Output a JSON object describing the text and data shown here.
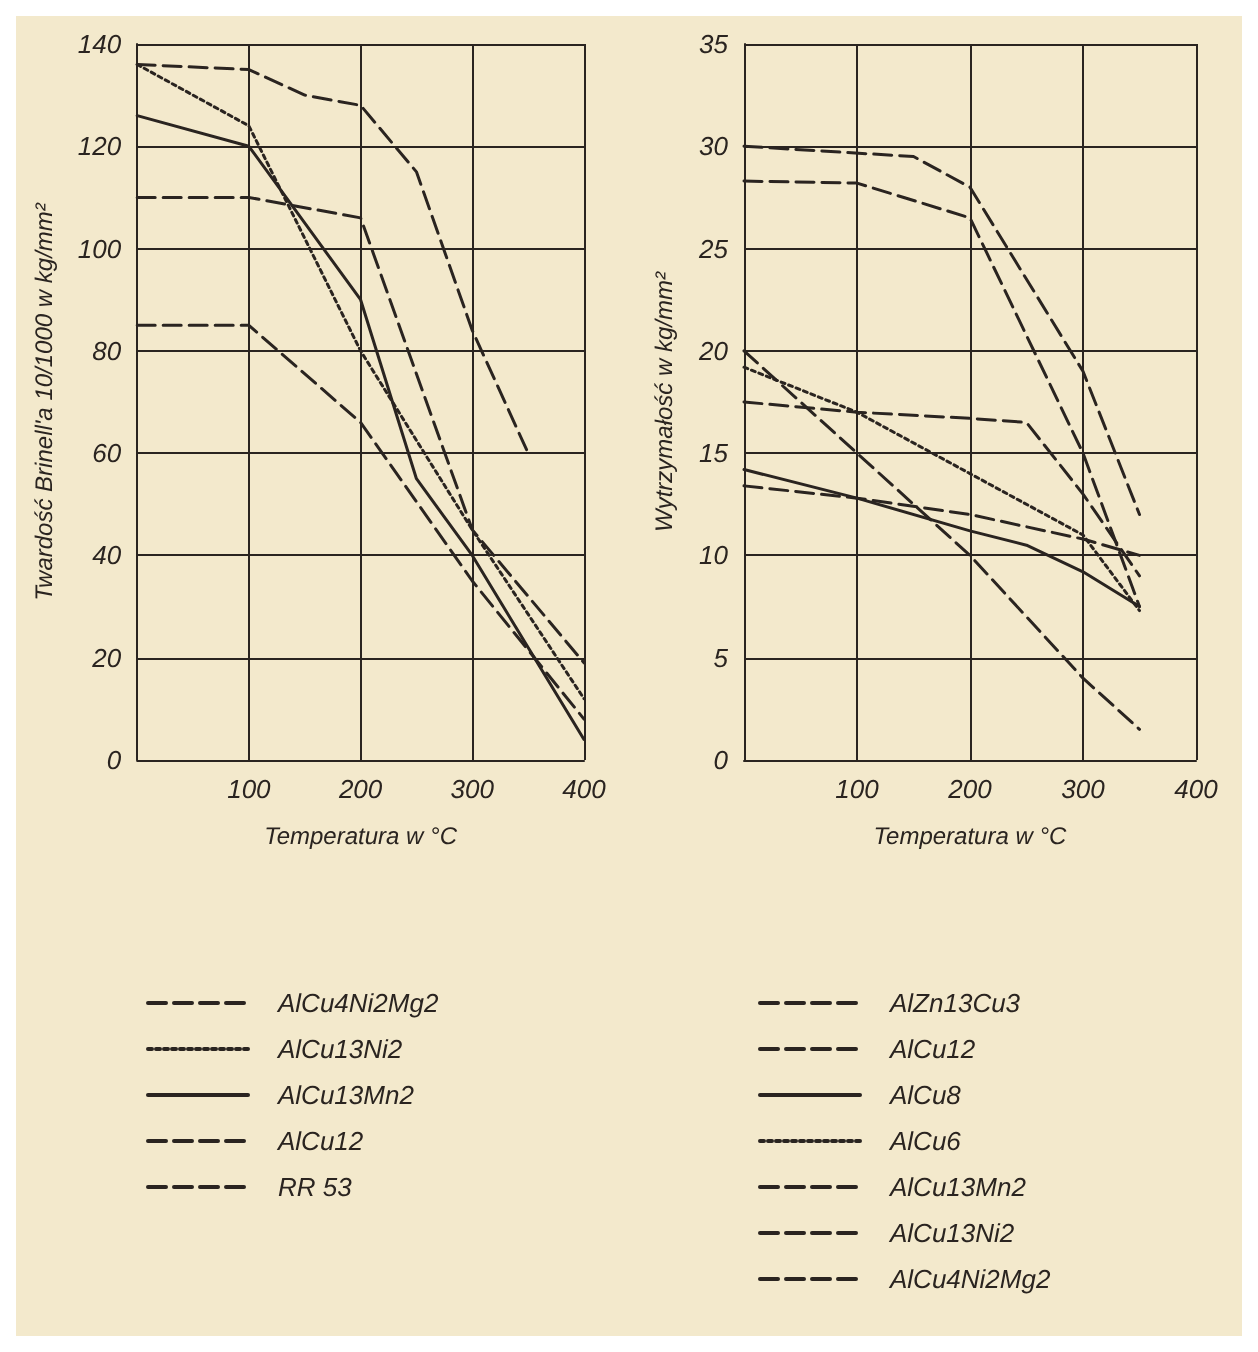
{
  "chart_data": [
    {
      "type": "line",
      "xlabel": "Temperatura w °C",
      "ylabel": "Twardość Brinell'a 10/1000 w kg/mm²",
      "xlim": [
        0,
        400
      ],
      "xticks": [
        {
          "value": 0,
          "label": null
        },
        100,
        200,
        300,
        400
      ],
      "ylim": [
        0,
        140
      ],
      "yticks": [
        0,
        20,
        40,
        60,
        80,
        100,
        120,
        140
      ],
      "grid": true,
      "legend": "bottom",
      "marker": "none",
      "series": [
        {
          "name": "AlCu4Ni2Mg2",
          "color": "#2a2420",
          "line_style": "dashed",
          "x": [
            0,
            100,
            150,
            200,
            250,
            300,
            350
          ],
          "values": [
            136,
            135,
            130,
            128,
            115,
            84,
            60
          ]
        },
        {
          "name": "AlCu13Ni2",
          "color": "#2a2420",
          "line_style": "dotted",
          "x": [
            0,
            100,
            200,
            300,
            400
          ],
          "values": [
            136,
            124,
            80,
            45,
            12
          ]
        },
        {
          "name": "AlCu13Mn2",
          "color": "#2a2420",
          "line_style": "solid",
          "x": [
            0,
            100,
            200,
            250,
            300,
            400
          ],
          "values": [
            126,
            120,
            90,
            55,
            40,
            4
          ]
        },
        {
          "name": "AlCu12",
          "color": "#2a2420",
          "line_style": "dashed",
          "x": [
            0,
            100,
            200,
            300,
            400
          ],
          "values": [
            85,
            85,
            66,
            35,
            8
          ]
        },
        {
          "name": "RR 53",
          "color": "#2a2420",
          "line_style": "dashed",
          "x": [
            0,
            100,
            200,
            300,
            400
          ],
          "values": [
            110,
            110,
            106,
            45,
            19
          ]
        }
      ]
    },
    {
      "type": "line",
      "xlabel": "Temperatura w °C",
      "ylabel": "Wytrzymałość w kg/mm²",
      "xlim": [
        0,
        400
      ],
      "xticks": [
        {
          "value": 0,
          "label": null
        },
        100,
        200,
        300,
        400
      ],
      "ylim": [
        0,
        35
      ],
      "yticks": [
        0,
        5,
        10,
        15,
        20,
        25,
        30,
        35
      ],
      "grid": true,
      "legend": "bottom",
      "marker": "none",
      "series": [
        {
          "name": "AlZn13Cu3",
          "color": "#2a2420",
          "line_style": "dashed",
          "x": [
            0,
            100,
            200,
            300,
            350
          ],
          "values": [
            20,
            15,
            10,
            4,
            1.5
          ]
        },
        {
          "name": "AlCu12",
          "color": "#2a2420",
          "line_style": "dashed",
          "x": [
            0,
            100,
            200,
            250,
            300,
            350
          ],
          "values": [
            17.5,
            17,
            16.7,
            16.5,
            13,
            9
          ]
        },
        {
          "name": "AlCu8",
          "color": "#2a2420",
          "line_style": "solid",
          "x": [
            0,
            100,
            200,
            250,
            300,
            350
          ],
          "values": [
            14.2,
            12.8,
            11.2,
            10.5,
            9.2,
            7.5
          ]
        },
        {
          "name": "AlCu6",
          "color": "#2a2420",
          "line_style": "dotted",
          "x": [
            0,
            100,
            200,
            300,
            350
          ],
          "values": [
            19.2,
            17,
            14,
            11,
            7.3
          ]
        },
        {
          "name": "AlCu13Mn2",
          "color": "#2a2420",
          "line_style": "dashed",
          "x": [
            0,
            100,
            200,
            300,
            350
          ],
          "values": [
            13.4,
            12.8,
            12,
            10.8,
            10
          ]
        },
        {
          "name": "AlCu13Ni2",
          "color": "#2a2420",
          "line_style": "dashed",
          "x": [
            0,
            100,
            200,
            300,
            350
          ],
          "values": [
            28.3,
            28.2,
            26.5,
            15,
            7.5
          ]
        },
        {
          "name": "AlCu4Ni2Mg2",
          "color": "#2a2420",
          "line_style": "dashed",
          "x": [
            0,
            150,
            200,
            300,
            350
          ],
          "values": [
            30,
            29.5,
            28,
            19,
            12
          ]
        }
      ]
    }
  ]
}
